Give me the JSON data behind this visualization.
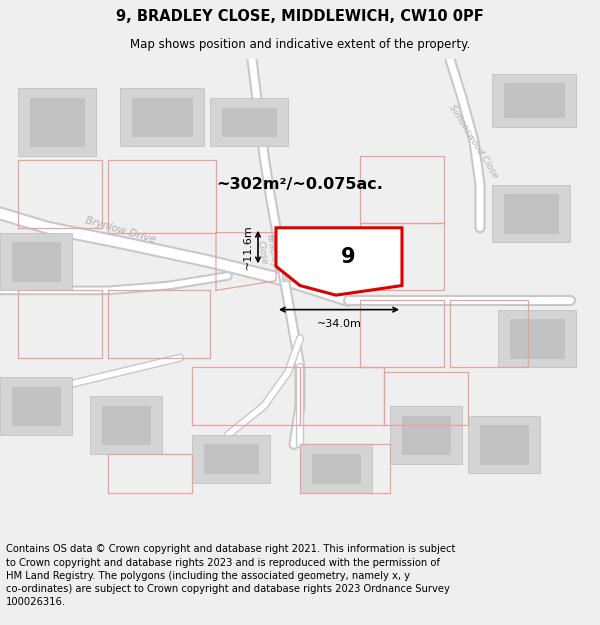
{
  "title": "9, BRADLEY CLOSE, MIDDLEWICH, CW10 0PF",
  "subtitle": "Map shows position and indicative extent of the property.",
  "footer": "Contains OS data © Crown copyright and database right 2021. This information is subject\nto Crown copyright and database rights 2023 and is reproduced with the permission of\nHM Land Registry. The polygons (including the associated geometry, namely x, y\nco-ordinates) are subject to Crown copyright and database rights 2023 Ordnance Survey\n100026316.",
  "area_label": "~302m²/~0.075ac.",
  "number_label": "9",
  "dim_width": "~34.0m",
  "dim_height": "~11.6m",
  "bg_color": "#efefef",
  "map_bg": "#f2f2f2",
  "road_fill": "#ffffff",
  "road_edge": "#c8c8c8",
  "building_outer": "#d4d4d4",
  "building_inner": "#c2c2c2",
  "plot_edge": "#dd0000",
  "plot_fill": "#ffffff",
  "pink_line": "#e8a0a0",
  "street_color": "#b0b0b0",
  "title_fontsize": 10.5,
  "subtitle_fontsize": 8.5,
  "footer_fontsize": 7.2,
  "label_fontsize": 11.5,
  "num_fontsize": 15,
  "dim_fontsize": 8
}
